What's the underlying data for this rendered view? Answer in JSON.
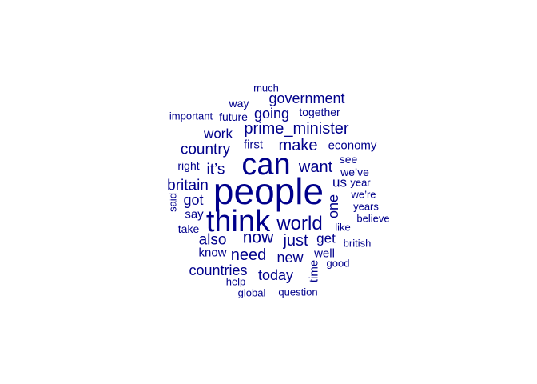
{
  "cloud": {
    "color": "#00008B",
    "words": [
      {
        "text": "people"
      },
      {
        "text": "can"
      },
      {
        "text": "think"
      },
      {
        "text": "world"
      },
      {
        "text": "prime_minister"
      },
      {
        "text": "government"
      },
      {
        "text": "country"
      },
      {
        "text": "make"
      },
      {
        "text": "want"
      },
      {
        "text": "now"
      },
      {
        "text": "just"
      },
      {
        "text": "need"
      },
      {
        "text": "going"
      },
      {
        "text": "britain"
      },
      {
        "text": "it’s"
      },
      {
        "text": "also"
      },
      {
        "text": "new"
      },
      {
        "text": "today"
      },
      {
        "text": "countries"
      },
      {
        "text": "work"
      },
      {
        "text": "one"
      },
      {
        "text": "got"
      },
      {
        "text": "us"
      },
      {
        "text": "get"
      },
      {
        "text": "first"
      },
      {
        "text": "economy"
      },
      {
        "text": "well"
      },
      {
        "text": "time"
      },
      {
        "text": "say"
      },
      {
        "text": "know"
      },
      {
        "text": "take"
      },
      {
        "text": "right"
      },
      {
        "text": "see"
      },
      {
        "text": "we’ve"
      },
      {
        "text": "year"
      },
      {
        "text": "we’re"
      },
      {
        "text": "years"
      },
      {
        "text": "believe"
      },
      {
        "text": "like"
      },
      {
        "text": "british"
      },
      {
        "text": "good"
      },
      {
        "text": "future"
      },
      {
        "text": "together"
      },
      {
        "text": "way"
      },
      {
        "text": "much"
      },
      {
        "text": "important"
      },
      {
        "text": "said"
      },
      {
        "text": "help"
      },
      {
        "text": "global"
      },
      {
        "text": "question"
      }
    ]
  }
}
